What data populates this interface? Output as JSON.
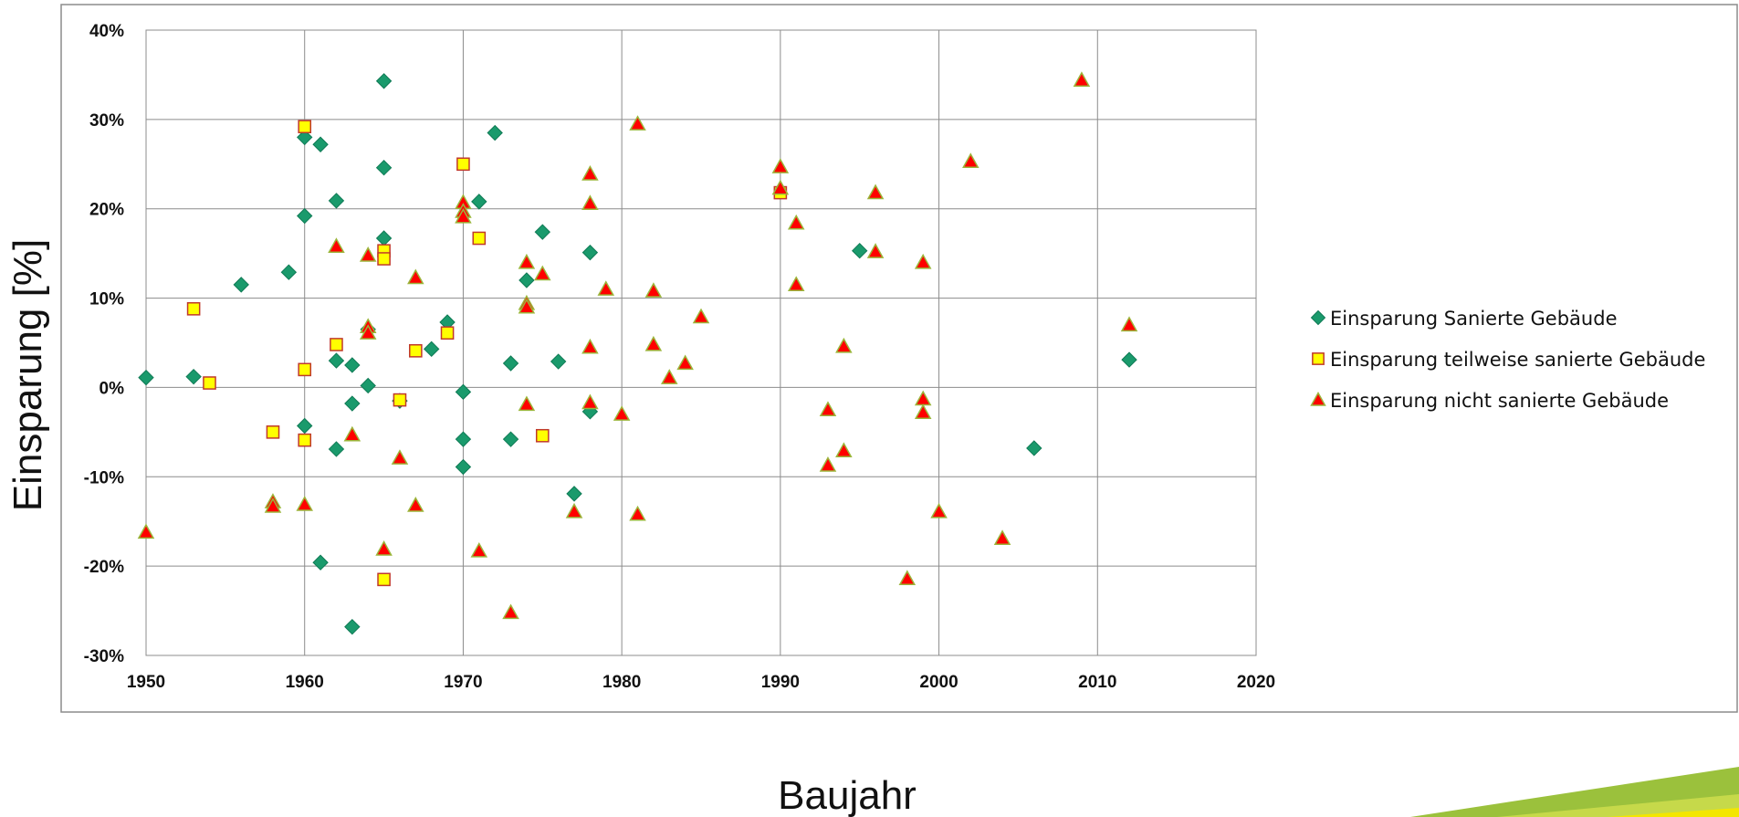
{
  "chart_data": {
    "type": "scatter",
    "title": "",
    "xlabel": "Baujahr",
    "ylabel": "Einsparung [%]",
    "xlim": [
      1950,
      2020
    ],
    "ylim": [
      -30,
      40
    ],
    "x_ticks": [
      1950,
      1960,
      1970,
      1980,
      1990,
      2000,
      2010,
      2020
    ],
    "y_ticks": [
      -30,
      -20,
      -10,
      0,
      10,
      20,
      30,
      40
    ],
    "x_tick_labels": [
      "1950",
      "1960",
      "1970",
      "1980",
      "1990",
      "2000",
      "2010",
      "2020"
    ],
    "y_tick_labels": [
      "-30%",
      "-20%",
      "-10%",
      "0%",
      "10%",
      "20%",
      "30%",
      "40%"
    ],
    "grid": true,
    "legend_position": "right",
    "series": [
      {
        "name": "Einsparung Sanierte Gebäude",
        "marker": "diamond",
        "color": "#1a9a6c",
        "stroke": "#0f7a55",
        "points": [
          [
            1950,
            1.1
          ],
          [
            1953,
            1.2
          ],
          [
            1956,
            11.5
          ],
          [
            1959,
            12.9
          ],
          [
            1960,
            28.0
          ],
          [
            1960,
            19.2
          ],
          [
            1960,
            -4.3
          ],
          [
            1961,
            27.2
          ],
          [
            1961,
            -19.6
          ],
          [
            1962,
            20.9
          ],
          [
            1962,
            3.0
          ],
          [
            1962,
            -6.9
          ],
          [
            1963,
            2.5
          ],
          [
            1963,
            -1.8
          ],
          [
            1963,
            -26.8
          ],
          [
            1964,
            0.2
          ],
          [
            1964,
            6.5
          ],
          [
            1965,
            34.3
          ],
          [
            1965,
            24.6
          ],
          [
            1965,
            16.7
          ],
          [
            1966,
            -1.5
          ],
          [
            1968,
            4.3
          ],
          [
            1969,
            7.3
          ],
          [
            1970,
            -0.5
          ],
          [
            1970,
            -5.8
          ],
          [
            1970,
            -8.9
          ],
          [
            1971,
            20.8
          ],
          [
            1972,
            28.5
          ],
          [
            1973,
            2.7
          ],
          [
            1973,
            -5.8
          ],
          [
            1974,
            12.0
          ],
          [
            1975,
            17.4
          ],
          [
            1976,
            2.9
          ],
          [
            1977,
            -11.9
          ],
          [
            1978,
            15.1
          ],
          [
            1978,
            -2.7
          ],
          [
            1995,
            15.3
          ],
          [
            2006,
            -6.8
          ],
          [
            2012,
            3.1
          ]
        ]
      },
      {
        "name": "Einsparung teilweise sanierte Gebäude",
        "marker": "square",
        "color": "#ffff00",
        "stroke": "#c0392b",
        "points": [
          [
            1953,
            8.8
          ],
          [
            1954,
            0.5
          ],
          [
            1958,
            -5.0
          ],
          [
            1960,
            29.2
          ],
          [
            1960,
            2.0
          ],
          [
            1960,
            -5.9
          ],
          [
            1962,
            4.8
          ],
          [
            1965,
            15.3
          ],
          [
            1965,
            14.4
          ],
          [
            1965,
            -21.5
          ],
          [
            1966,
            -1.4
          ],
          [
            1967,
            4.1
          ],
          [
            1969,
            6.1
          ],
          [
            1970,
            25.0
          ],
          [
            1971,
            16.7
          ],
          [
            1975,
            -5.4
          ],
          [
            1990,
            21.8
          ]
        ]
      },
      {
        "name": "Einsparung nicht sanierte Gebäude",
        "marker": "triangle",
        "color": "#ff0000",
        "stroke": "#9bb53a",
        "points": [
          [
            1950,
            -16.2
          ],
          [
            1958,
            -12.8
          ],
          [
            1958,
            -13.3
          ],
          [
            1960,
            -13.1
          ],
          [
            1962,
            15.8
          ],
          [
            1963,
            -5.3
          ],
          [
            1964,
            14.8
          ],
          [
            1964,
            6.8
          ],
          [
            1964,
            6.1
          ],
          [
            1965,
            -18.1
          ],
          [
            1966,
            -7.9
          ],
          [
            1967,
            12.3
          ],
          [
            1967,
            -13.2
          ],
          [
            1970,
            20.7
          ],
          [
            1970,
            19.7
          ],
          [
            1970,
            19.1
          ],
          [
            1971,
            -18.3
          ],
          [
            1973,
            -25.2
          ],
          [
            1974,
            14.0
          ],
          [
            1974,
            9.4
          ],
          [
            1974,
            9.0
          ],
          [
            1974,
            -1.9
          ],
          [
            1975,
            12.7
          ],
          [
            1977,
            -13.9
          ],
          [
            1978,
            23.9
          ],
          [
            1978,
            20.6
          ],
          [
            1978,
            4.5
          ],
          [
            1978,
            -1.7
          ],
          [
            1979,
            11.0
          ],
          [
            1980,
            -3.0
          ],
          [
            1981,
            29.5
          ],
          [
            1981,
            -14.2
          ],
          [
            1982,
            10.8
          ],
          [
            1982,
            4.8
          ],
          [
            1983,
            1.1
          ],
          [
            1984,
            2.7
          ],
          [
            1985,
            7.9
          ],
          [
            1990,
            24.7
          ],
          [
            1990,
            22.3
          ],
          [
            1991,
            18.4
          ],
          [
            1991,
            11.5
          ],
          [
            1993,
            -2.5
          ],
          [
            1993,
            -8.7
          ],
          [
            1994,
            4.6
          ],
          [
            1994,
            -7.1
          ],
          [
            1996,
            21.8
          ],
          [
            1996,
            15.2
          ],
          [
            1998,
            -21.4
          ],
          [
            1999,
            14.0
          ],
          [
            1999,
            -1.3
          ],
          [
            1999,
            -2.8
          ],
          [
            2000,
            -13.9
          ],
          [
            2002,
            25.3
          ],
          [
            2004,
            -16.9
          ],
          [
            2009,
            34.4
          ],
          [
            2012,
            7.0
          ]
        ]
      }
    ]
  }
}
